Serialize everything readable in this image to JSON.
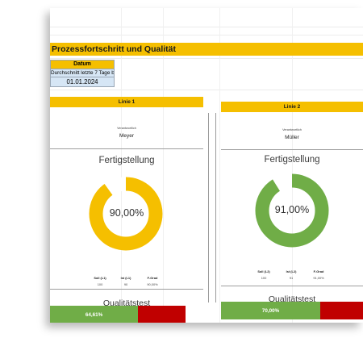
{
  "header": {
    "title": "Prozessfortschritt und Qualität"
  },
  "date": {
    "header": "Datum",
    "label": "Durchschnitt letzte 7 Tage bis",
    "value": "01.01.2024"
  },
  "lines": [
    {
      "name": "Linie 1",
      "responsible_label": "Verantwortlich",
      "responsible": "Meyer",
      "completion_title": "Fertigstellung",
      "completion_label": "90,00%",
      "completion": 0.9,
      "ring_color": "#f5bf00",
      "stats": [
        {
          "header": "Soll (L1)",
          "value": "100"
        },
        {
          "header": "Ist (L1)",
          "value": "90"
        },
        {
          "header": "F-Grad",
          "value": "90,00%"
        }
      ],
      "quality_title": "Qualitätstest",
      "quality_label": "64,61%",
      "quality": 0.6461
    },
    {
      "name": "Linie 2",
      "responsible_label": "Verantwortlich",
      "responsible": "Müller",
      "completion_title": "Fertigstellung",
      "completion_label": "91,00%",
      "completion": 0.91,
      "ring_color": "#70ad47",
      "stats": [
        {
          "header": "Soll (L2)",
          "value": "100"
        },
        {
          "header": "Ist (L2)",
          "value": "91"
        },
        {
          "header": "F-Grad",
          "value": "91,00%"
        }
      ],
      "quality_title": "Qualitätstest",
      "quality_label": "70,00%",
      "quality": 0.7
    }
  ],
  "colors": {
    "accent": "#f5bf00",
    "pass": "#70ad47",
    "fail": "#c00000"
  }
}
